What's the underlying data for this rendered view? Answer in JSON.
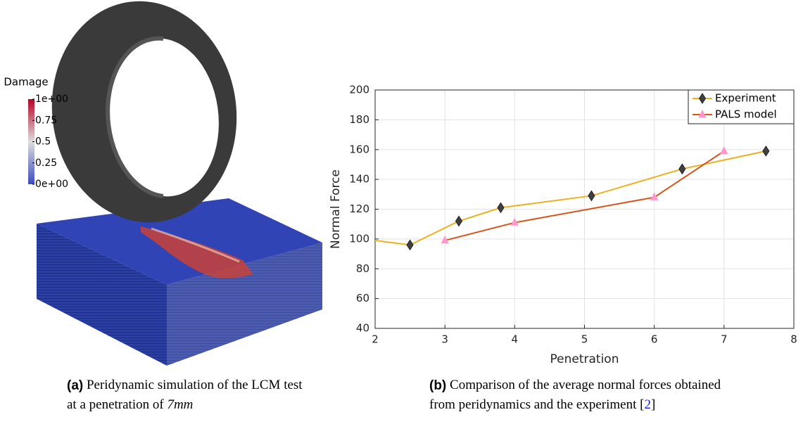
{
  "panel_a": {
    "colorbar": {
      "title": "Damage",
      "ticks": [
        {
          "value": 1,
          "label": "1e+00"
        },
        0.75,
        0.5,
        0.25,
        {
          "value": 0,
          "label": "0e+00"
        }
      ]
    },
    "caption": {
      "label": "(a)",
      "line1": "Peridynamic simulation of the LCM test",
      "line2": "at a penetration of",
      "math": "7mm"
    }
  },
  "chart_data": {
    "type": "line",
    "xlabel": "Penetration",
    "ylabel": "Normal Force",
    "xlim": [
      2,
      8
    ],
    "xticks": [
      2,
      3,
      4,
      5,
      6,
      7,
      8
    ],
    "ylim": [
      40,
      200
    ],
    "yticks": [
      40,
      60,
      80,
      100,
      120,
      140,
      160,
      180,
      200
    ],
    "grid": true,
    "legend": "upper-right",
    "series": [
      {
        "name": "Experiment",
        "color": "#EDB120",
        "marker": "diamond",
        "marker_color": "#404040",
        "x": [
          2,
          2.5,
          3.2,
          3.8,
          5.1,
          6.4,
          7.6
        ],
        "values": [
          99,
          96,
          112,
          121,
          129,
          147,
          159
        ]
      },
      {
        "name": "PALS model",
        "color": "#D95319",
        "marker": "triangle",
        "marker_color": "#FF99CC",
        "x": [
          3,
          4,
          6,
          7
        ],
        "values": [
          99,
          111,
          128,
          159
        ]
      }
    ]
  },
  "panel_b_caption": {
    "label": "(b)",
    "line1": "Comparison of the average normal forces obtained",
    "line2": "from peridynamics and the experiment",
    "ref_open": "[",
    "ref": "2",
    "ref_close": "]"
  }
}
